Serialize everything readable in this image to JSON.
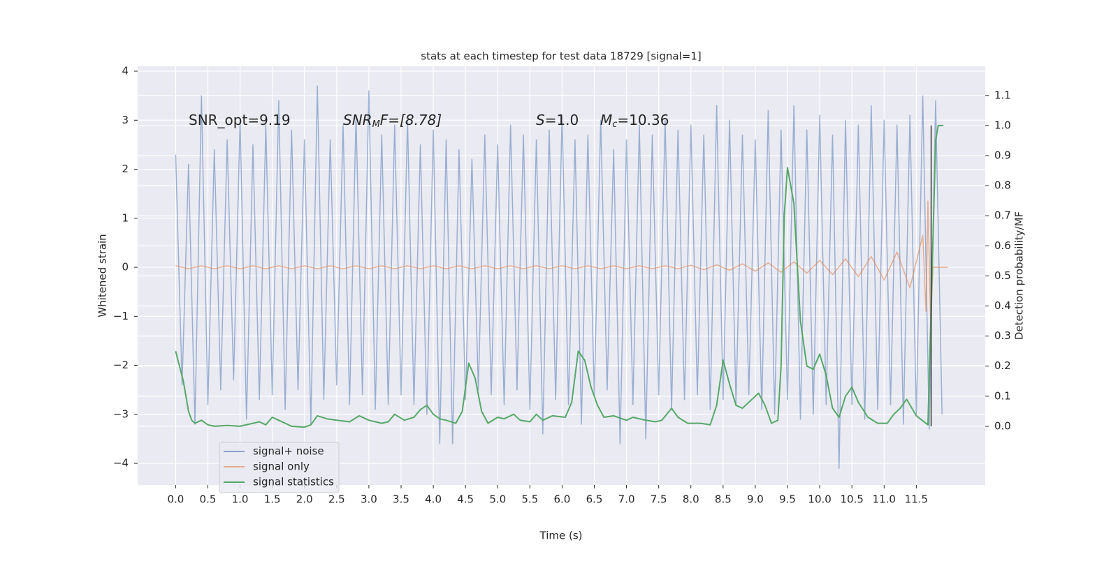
{
  "chart_data": {
    "type": "line",
    "title": "stats at each timestep for test data 18729 [signal=1]",
    "xlabel": "Time (s)",
    "ylabel": "Whitened strain",
    "y2label": "Detection probability/MF",
    "annotations": [
      {
        "parts": [
          "SNR_opt=9.19"
        ]
      },
      {
        "parts": [
          "SNR",
          "M",
          "F=[8.78]"
        ]
      },
      {
        "parts": [
          "S",
          "=1.0"
        ]
      },
      {
        "parts": [
          "M",
          "c",
          "=10.36"
        ]
      }
    ],
    "xlim": [
      -0.59,
      12.57
    ],
    "ylim": [
      -4.44,
      4.1
    ],
    "y2lim": [
      -0.195,
      1.197
    ],
    "xticks": [
      {
        "value": 0,
        "label": "0.0"
      },
      0.5,
      {
        "value": 1,
        "label": "1.0"
      },
      1.5,
      {
        "value": 2,
        "label": "2.0"
      },
      2.5,
      {
        "value": 3,
        "label": "3.0"
      },
      3.5,
      {
        "value": 4,
        "label": "4.0"
      },
      4.5,
      {
        "value": 5,
        "label": "5.0"
      },
      5.5,
      {
        "value": 6,
        "label": "6.0"
      },
      6.5,
      {
        "value": 7,
        "label": "7.0"
      },
      7.5,
      {
        "value": 8,
        "label": "8.0"
      },
      8.5,
      {
        "value": 9,
        "label": "9.0"
      },
      9.5,
      {
        "value": 10,
        "label": "10.0"
      },
      10.5,
      {
        "value": 11,
        "label": "11.0"
      },
      11.5
    ],
    "yticks": [
      {
        "value": -4,
        "label": "−4"
      },
      {
        "value": -3,
        "label": "−3"
      },
      {
        "value": -2,
        "label": "−2"
      },
      {
        "value": -1,
        "label": "−1"
      },
      0,
      1,
      2,
      3,
      4
    ],
    "y2ticks": [
      {
        "value": 0,
        "label": "0.0"
      },
      0.1,
      0.2,
      0.3,
      0.4,
      0.5,
      0.6,
      0.7,
      0.8,
      0.9,
      {
        "value": 1,
        "label": "1.0"
      },
      1.1
    ],
    "grid": true,
    "legend": "lower left",
    "vline": {
      "x": 11.73,
      "y2": [
        0,
        1
      ],
      "color": "#333333"
    },
    "series": [
      {
        "name": "signal+ noise",
        "color": "#4c72b0",
        "x": [
          0.0,
          0.1,
          0.2,
          0.3,
          0.4,
          0.5,
          0.6,
          0.7,
          0.8,
          0.9,
          1.0,
          1.1,
          1.2,
          1.3,
          1.4,
          1.5,
          1.6,
          1.7,
          1.8,
          1.9,
          2.0,
          2.1,
          2.2,
          2.3,
          2.4,
          2.5,
          2.6,
          2.7,
          2.8,
          2.9,
          3.0,
          3.1,
          3.2,
          3.3,
          3.4,
          3.5,
          3.6,
          3.7,
          3.8,
          3.9,
          4.0,
          4.1,
          4.2,
          4.3,
          4.4,
          4.5,
          4.6,
          4.7,
          4.8,
          4.9,
          5.0,
          5.1,
          5.2,
          5.3,
          5.4,
          5.5,
          5.6,
          5.7,
          5.8,
          5.9,
          6.0,
          6.1,
          6.2,
          6.3,
          6.4,
          6.5,
          6.6,
          6.7,
          6.8,
          6.9,
          7.0,
          7.1,
          7.2,
          7.3,
          7.4,
          7.5,
          7.6,
          7.7,
          7.8,
          7.9,
          8.0,
          8.1,
          8.2,
          8.3,
          8.4,
          8.5,
          8.6,
          8.7,
          8.8,
          8.9,
          9.0,
          9.1,
          9.2,
          9.3,
          9.4,
          9.5,
          9.6,
          9.7,
          9.8,
          9.9,
          10.0,
          10.1,
          10.2,
          10.3,
          10.4,
          10.5,
          10.6,
          10.7,
          10.8,
          10.9,
          11.0,
          11.1,
          11.2,
          11.3,
          11.4,
          11.5,
          11.6,
          11.7,
          11.8,
          11.9
        ],
        "values": [
          2.3,
          -2.4,
          2.1,
          -3.2,
          3.5,
          -2.8,
          2.4,
          -2.5,
          2.6,
          -2.3,
          3.0,
          -3.1,
          2.5,
          -2.7,
          2.9,
          -2.6,
          3.4,
          -2.9,
          2.8,
          -2.5,
          2.6,
          -3.2,
          3.7,
          -2.7,
          2.6,
          -2.4,
          2.9,
          -2.8,
          3.1,
          -2.6,
          3.6,
          -2.9,
          2.7,
          -2.8,
          2.9,
          -2.6,
          3.0,
          -2.8,
          2.5,
          -3.0,
          2.8,
          -3.6,
          2.6,
          -3.6,
          2.4,
          -2.7,
          2.2,
          -2.5,
          2.7,
          -2.6,
          2.5,
          -2.8,
          2.9,
          -2.5,
          2.7,
          -2.9,
          2.6,
          -3.4,
          2.8,
          -2.7,
          3.1,
          -2.8,
          2.6,
          -3.2,
          2.7,
          -2.6,
          3.0,
          -2.5,
          2.4,
          -3.6,
          2.6,
          -2.8,
          2.9,
          -3.5,
          2.7,
          -2.6,
          3.0,
          -2.9,
          2.8,
          -2.7,
          2.9,
          -2.6,
          2.7,
          -2.9,
          3.3,
          -2.7,
          3.0,
          -2.8,
          2.7,
          -2.6,
          2.6,
          -2.9,
          3.2,
          -3.0,
          2.8,
          -2.7,
          3.3,
          -3.1,
          2.8,
          -3.0,
          3.1,
          -2.8,
          2.7,
          -4.1,
          3.0,
          -2.8,
          2.9,
          -3.1,
          3.3,
          -2.9,
          3.0,
          -2.8,
          2.9,
          -3.2,
          3.1,
          -3.0,
          3.5,
          -3.3,
          3.4,
          -3.0
        ]
      },
      {
        "name": "signal only",
        "color": "#dd8452",
        "x": [
          0.0,
          0.2,
          0.4,
          0.6,
          0.8,
          1.0,
          1.2,
          1.4,
          1.6,
          1.8,
          2.0,
          2.2,
          2.4,
          2.6,
          2.8,
          3.0,
          3.2,
          3.4,
          3.6,
          3.8,
          4.0,
          4.2,
          4.4,
          4.6,
          4.8,
          5.0,
          5.2,
          5.4,
          5.6,
          5.8,
          6.0,
          6.2,
          6.4,
          6.6,
          6.8,
          7.0,
          7.2,
          7.4,
          7.6,
          7.8,
          8.0,
          8.2,
          8.4,
          8.6,
          8.8,
          9.0,
          9.2,
          9.4,
          9.6,
          9.8,
          10.0,
          10.2,
          10.4,
          10.6,
          10.8,
          11.0,
          11.2,
          11.4,
          11.6,
          11.65,
          11.68,
          11.72,
          11.76,
          11.99
        ],
        "values": [
          0.03,
          -0.03,
          0.03,
          -0.03,
          0.03,
          -0.03,
          0.03,
          -0.03,
          0.03,
          -0.03,
          0.03,
          -0.03,
          0.03,
          -0.03,
          0.03,
          -0.03,
          0.03,
          -0.03,
          0.03,
          -0.03,
          0.03,
          -0.03,
          0.03,
          -0.03,
          0.03,
          -0.03,
          0.03,
          -0.03,
          0.03,
          -0.03,
          0.03,
          -0.03,
          0.03,
          -0.03,
          0.03,
          -0.03,
          0.03,
          -0.03,
          0.03,
          -0.03,
          0.04,
          -0.05,
          0.05,
          -0.06,
          0.07,
          -0.08,
          0.09,
          -0.1,
          0.11,
          -0.12,
          0.14,
          -0.15,
          0.17,
          -0.19,
          0.22,
          -0.26,
          0.31,
          -0.42,
          0.65,
          -0.9,
          1.35,
          -1.1,
          0.0,
          0.0
        ]
      },
      {
        "name": "signal statistics",
        "color": "#55a868",
        "axis": "y2",
        "x": [
          0.0,
          0.12,
          0.2,
          0.25,
          0.3,
          0.4,
          0.5,
          0.6,
          0.8,
          1.0,
          1.2,
          1.3,
          1.4,
          1.5,
          1.6,
          1.8,
          2.0,
          2.1,
          2.2,
          2.35,
          2.5,
          2.7,
          2.85,
          3.0,
          3.2,
          3.3,
          3.4,
          3.55,
          3.7,
          3.8,
          3.9,
          4.0,
          4.1,
          4.2,
          4.35,
          4.45,
          4.55,
          4.65,
          4.75,
          4.85,
          5.0,
          5.1,
          5.25,
          5.35,
          5.5,
          5.6,
          5.7,
          5.85,
          6.05,
          6.15,
          6.25,
          6.35,
          6.45,
          6.55,
          6.65,
          6.8,
          7.0,
          7.1,
          7.3,
          7.45,
          7.55,
          7.7,
          7.8,
          7.95,
          8.15,
          8.3,
          8.4,
          8.5,
          8.6,
          8.7,
          8.8,
          8.95,
          9.05,
          9.15,
          9.25,
          9.35,
          9.4,
          9.45,
          9.5,
          9.6,
          9.7,
          9.8,
          9.9,
          10.0,
          10.1,
          10.2,
          10.3,
          10.4,
          10.5,
          10.6,
          10.75,
          10.9,
          11.05,
          11.15,
          11.25,
          11.35,
          11.5,
          11.68,
          11.75,
          11.8,
          11.84,
          11.92
        ],
        "values": [
          0.25,
          0.15,
          0.05,
          0.02,
          0.01,
          0.02,
          0.005,
          0.0,
          0.003,
          0.0,
          0.01,
          0.015,
          0.005,
          0.03,
          0.02,
          0.0,
          -0.003,
          0.005,
          0.035,
          0.025,
          0.02,
          0.015,
          0.035,
          0.02,
          0.01,
          0.015,
          0.04,
          0.02,
          0.03,
          0.055,
          0.07,
          0.04,
          0.025,
          0.02,
          0.01,
          0.05,
          0.21,
          0.16,
          0.05,
          0.01,
          0.03,
          0.025,
          0.04,
          0.02,
          0.015,
          0.04,
          0.02,
          0.035,
          0.03,
          0.08,
          0.25,
          0.22,
          0.13,
          0.07,
          0.03,
          0.035,
          0.02,
          0.03,
          0.02,
          0.015,
          0.02,
          0.06,
          0.03,
          0.01,
          0.01,
          0.005,
          0.07,
          0.22,
          0.14,
          0.07,
          0.06,
          0.09,
          0.11,
          0.07,
          0.01,
          0.02,
          0.2,
          0.7,
          0.86,
          0.74,
          0.35,
          0.2,
          0.19,
          0.24,
          0.17,
          0.06,
          0.03,
          0.1,
          0.13,
          0.08,
          0.03,
          0.01,
          0.01,
          0.04,
          0.06,
          0.09,
          0.035,
          0.005,
          0.55,
          0.95,
          1.0,
          1.0
        ]
      }
    ]
  }
}
